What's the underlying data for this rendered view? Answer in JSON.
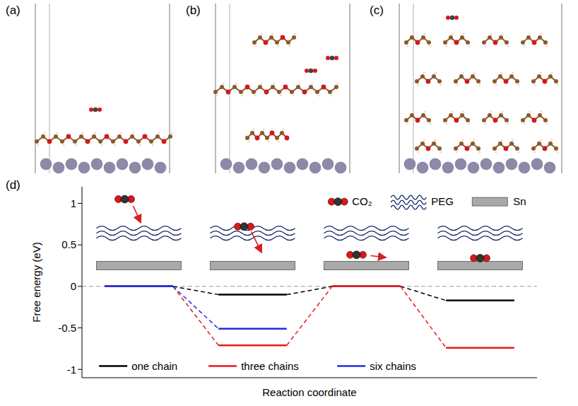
{
  "chart_data": {
    "type": "line",
    "y_label": "Free energy (eV)",
    "x_label": "Reaction coordinate",
    "ylim": [
      -1.1,
      1.2
    ],
    "yticks": [
      -1,
      -0.5,
      0,
      0.5,
      1
    ],
    "reference_line": 0,
    "legend": "bottom",
    "line_style": "solid",
    "tick_labels": "y",
    "series": [
      {
        "name": "one chain",
        "color": "#000000",
        "values": [
          0,
          -0.1,
          0,
          -0.17
        ]
      },
      {
        "name": "three chains",
        "color": "#e8191c",
        "values": [
          0,
          -0.71,
          0,
          -0.74
        ]
      },
      {
        "name": "six chains",
        "color": "#1f2fe0",
        "values": [
          0,
          -0.51,
          null,
          null
        ]
      }
    ],
    "icon_legend": [
      "CO₂",
      "PEG",
      "Sn"
    ]
  },
  "panel_labels": [
    "(a)",
    "(b)",
    "(c)",
    "(d)"
  ]
}
